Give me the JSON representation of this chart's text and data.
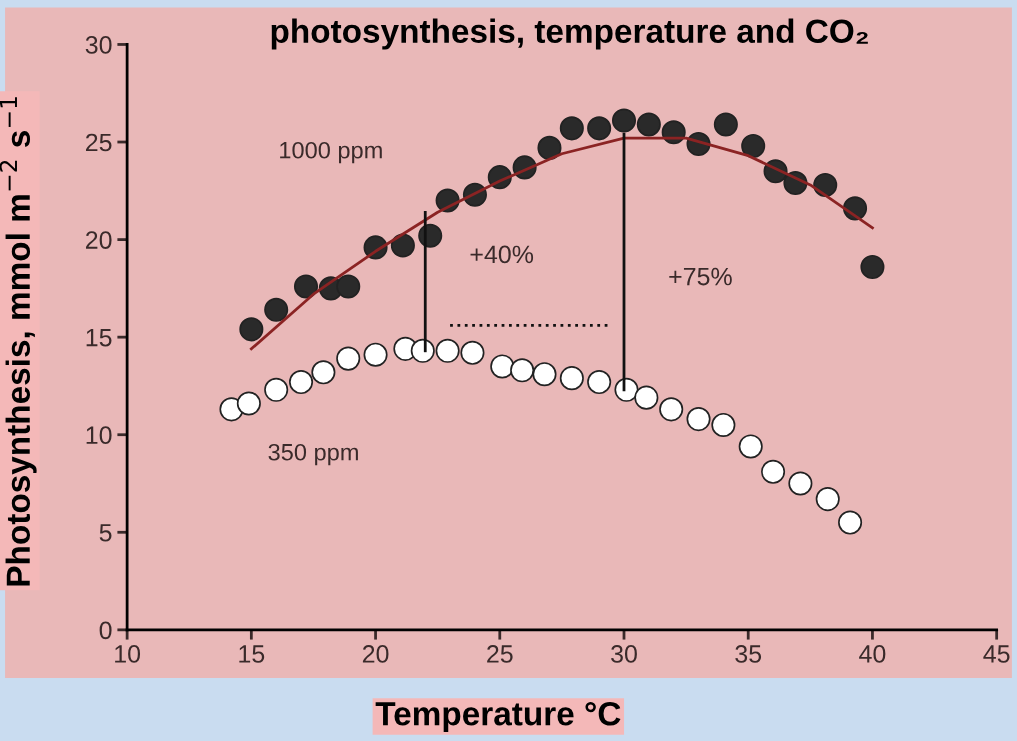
{
  "chart_data": {
    "type": "scatter",
    "title": "photosynthesis, temperature and CO₂",
    "xlabel": "Temperature °C",
    "ylabel": "Photosynthesis, mmol m$^{−2}$ s$^{−1}$",
    "xlim": [
      10,
      45
    ],
    "xticks": [
      10,
      15,
      20,
      25,
      30,
      35,
      40,
      45
    ],
    "ylim": [
      0,
      30
    ],
    "yticks": [
      0,
      5,
      10,
      15,
      20,
      25,
      30
    ],
    "grid": false,
    "legend": false,
    "series": [
      {
        "name": "1000 ppm",
        "marker": "circle",
        "color": "#2a2a2a",
        "x": [
          15.0,
          16.0,
          17.2,
          18.2,
          18.9,
          20.0,
          21.1,
          22.2,
          22.9,
          24.0,
          25.0,
          26.0,
          27.0,
          27.9,
          29.0,
          30.0,
          31.0,
          32.0,
          33.0,
          34.1,
          35.2,
          36.1,
          36.9,
          38.1,
          39.3,
          40.0
        ],
        "values": [
          15.4,
          16.4,
          17.6,
          17.5,
          17.6,
          19.6,
          19.7,
          20.2,
          22.0,
          22.3,
          23.2,
          23.7,
          24.7,
          25.7,
          25.7,
          26.1,
          25.9,
          25.5,
          24.9,
          25.9,
          24.8,
          23.5,
          22.9,
          22.8,
          21.6,
          18.6
        ]
      },
      {
        "name": "350 ppm",
        "marker": "circle",
        "color": "#ffffff",
        "x": [
          14.2,
          14.9,
          16.0,
          17.0,
          17.9,
          18.9,
          20.0,
          21.2,
          21.9,
          22.9,
          23.9,
          25.1,
          25.9,
          26.8,
          27.9,
          29.0,
          30.1,
          30.9,
          31.9,
          33.0,
          34.0,
          35.1,
          36.0,
          37.1,
          38.2,
          39.1
        ],
        "values": [
          11.3,
          11.6,
          12.3,
          12.7,
          13.2,
          13.9,
          14.1,
          14.4,
          14.3,
          14.3,
          14.2,
          13.5,
          13.3,
          13.1,
          12.9,
          12.7,
          12.3,
          11.9,
          11.3,
          10.8,
          10.5,
          9.4,
          8.1,
          7.5,
          6.7,
          5.5
        ]
      },
      {
        "type": "line",
        "color": "#8b2323",
        "line_style": "solid",
        "x": [
          15,
          17.5,
          20,
          22.5,
          25,
          27.5,
          30,
          32.5,
          35,
          37.5,
          40
        ],
        "values": [
          14.4,
          17.2,
          19.4,
          21.4,
          23.0,
          24.4,
          25.2,
          25.2,
          24.3,
          22.8,
          20.6
        ]
      },
      {
        "type": "line",
        "color": "#111111",
        "line_style": "solid",
        "x": [
          22,
          22
        ],
        "values": [
          14.3,
          21.4
        ]
      },
      {
        "type": "line",
        "color": "#111111",
        "line_style": "solid",
        "x": [
          30,
          30
        ],
        "values": [
          12.3,
          25.4
        ]
      },
      {
        "type": "line",
        "color": "#111111",
        "line_style": "dotted",
        "x": [
          23,
          29.5
        ],
        "values": [
          15.6,
          15.6
        ]
      }
    ],
    "annotations": [
      "+40%",
      "+75%"
    ]
  }
}
